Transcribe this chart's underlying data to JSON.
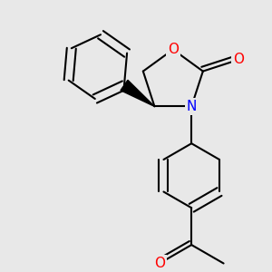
{
  "background_color": "#e8e8e8",
  "bond_color": "#000000",
  "atom_colors": {
    "O": "#ff0000",
    "N": "#0000ff"
  },
  "bond_width": 1.5,
  "font_size_atom": 11,
  "figsize": [
    3.0,
    3.0
  ],
  "dpi": 100
}
